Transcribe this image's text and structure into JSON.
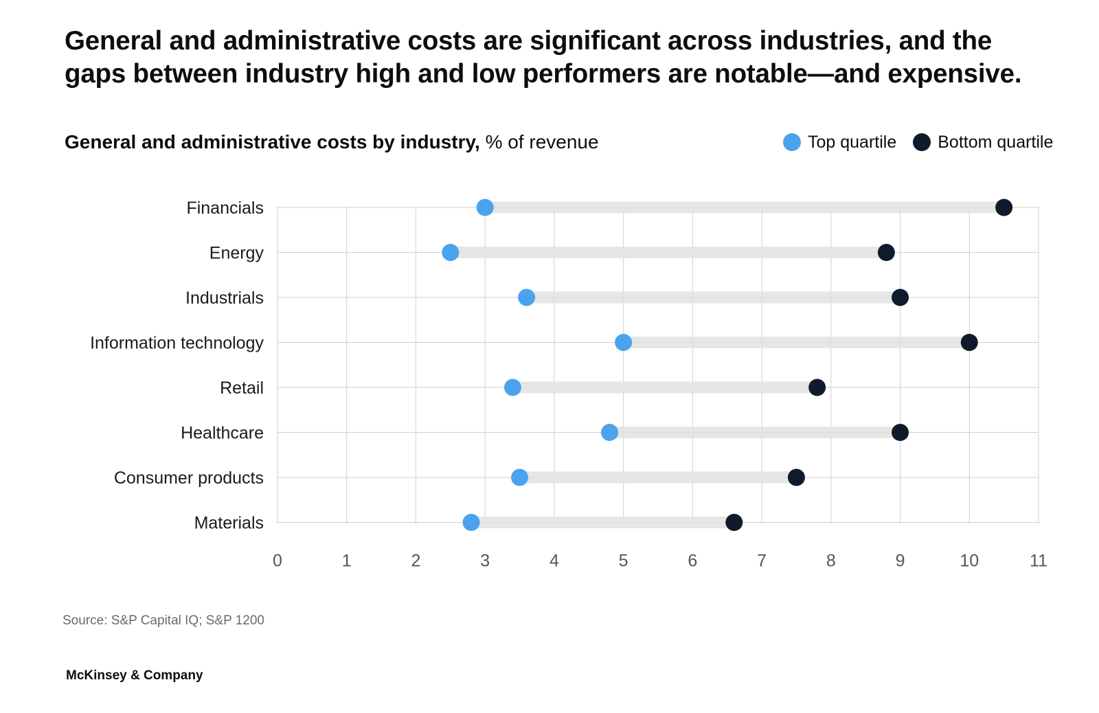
{
  "headline": "General and administrative costs are significant across industries, and the gaps between industry high and low performers are notable—and expensive.",
  "subtitle": {
    "bold": "General and administrative costs by industry,",
    "regular": "% of revenue"
  },
  "colors": {
    "top_quartile": "#4aa3ec",
    "bottom_quartile": "#0f1b2d",
    "connector": "#e2e2e2",
    "grid": "#cfcfcf"
  },
  "source": "Source: S&P Capital IQ; S&P 1200",
  "brand": "McKinsey & Company",
  "chart_data": {
    "type": "dumbbell",
    "title": "General and administrative costs by industry",
    "ylabel": "",
    "xlabel": "% of revenue",
    "xlim": [
      0,
      11
    ],
    "x_ticks": [
      0,
      1,
      2,
      3,
      4,
      5,
      6,
      7,
      8,
      9,
      10,
      11
    ],
    "categories": [
      "Financials",
      "Energy",
      "Industrials",
      "Information technology",
      "Retail",
      "Healthcare",
      "Consumer products",
      "Materials"
    ],
    "series": [
      {
        "name": "Top quartile",
        "values": [
          3.0,
          2.5,
          3.6,
          5.0,
          3.4,
          4.8,
          3.5,
          2.8
        ]
      },
      {
        "name": "Bottom quartile",
        "values": [
          10.5,
          8.8,
          9.0,
          10.0,
          7.8,
          9.0,
          7.5,
          6.6
        ]
      }
    ],
    "legend": "top-right",
    "grid": true
  }
}
